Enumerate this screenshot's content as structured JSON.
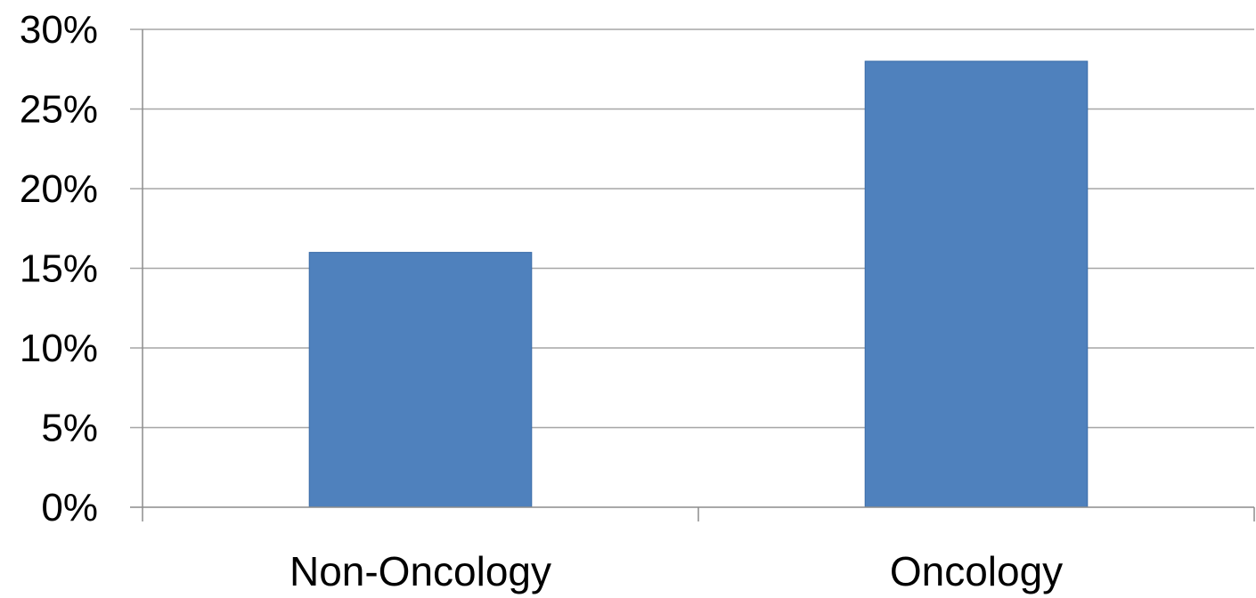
{
  "chart_data": {
    "type": "bar",
    "categories": [
      "Non-Oncology",
      "Oncology"
    ],
    "series": [
      {
        "values": [
          16,
          28
        ],
        "color": "#4f81bd"
      }
    ],
    "title": "",
    "xlabel": "",
    "ylabel": "",
    "ylim": [
      0,
      30
    ],
    "yticks": [
      0,
      5,
      10,
      15,
      20,
      25,
      30
    ],
    "ytick_labels": [
      "0%",
      "5%",
      "10%",
      "15%",
      "20%",
      "25%",
      "30%"
    ],
    "grid": true,
    "legend": "none"
  }
}
